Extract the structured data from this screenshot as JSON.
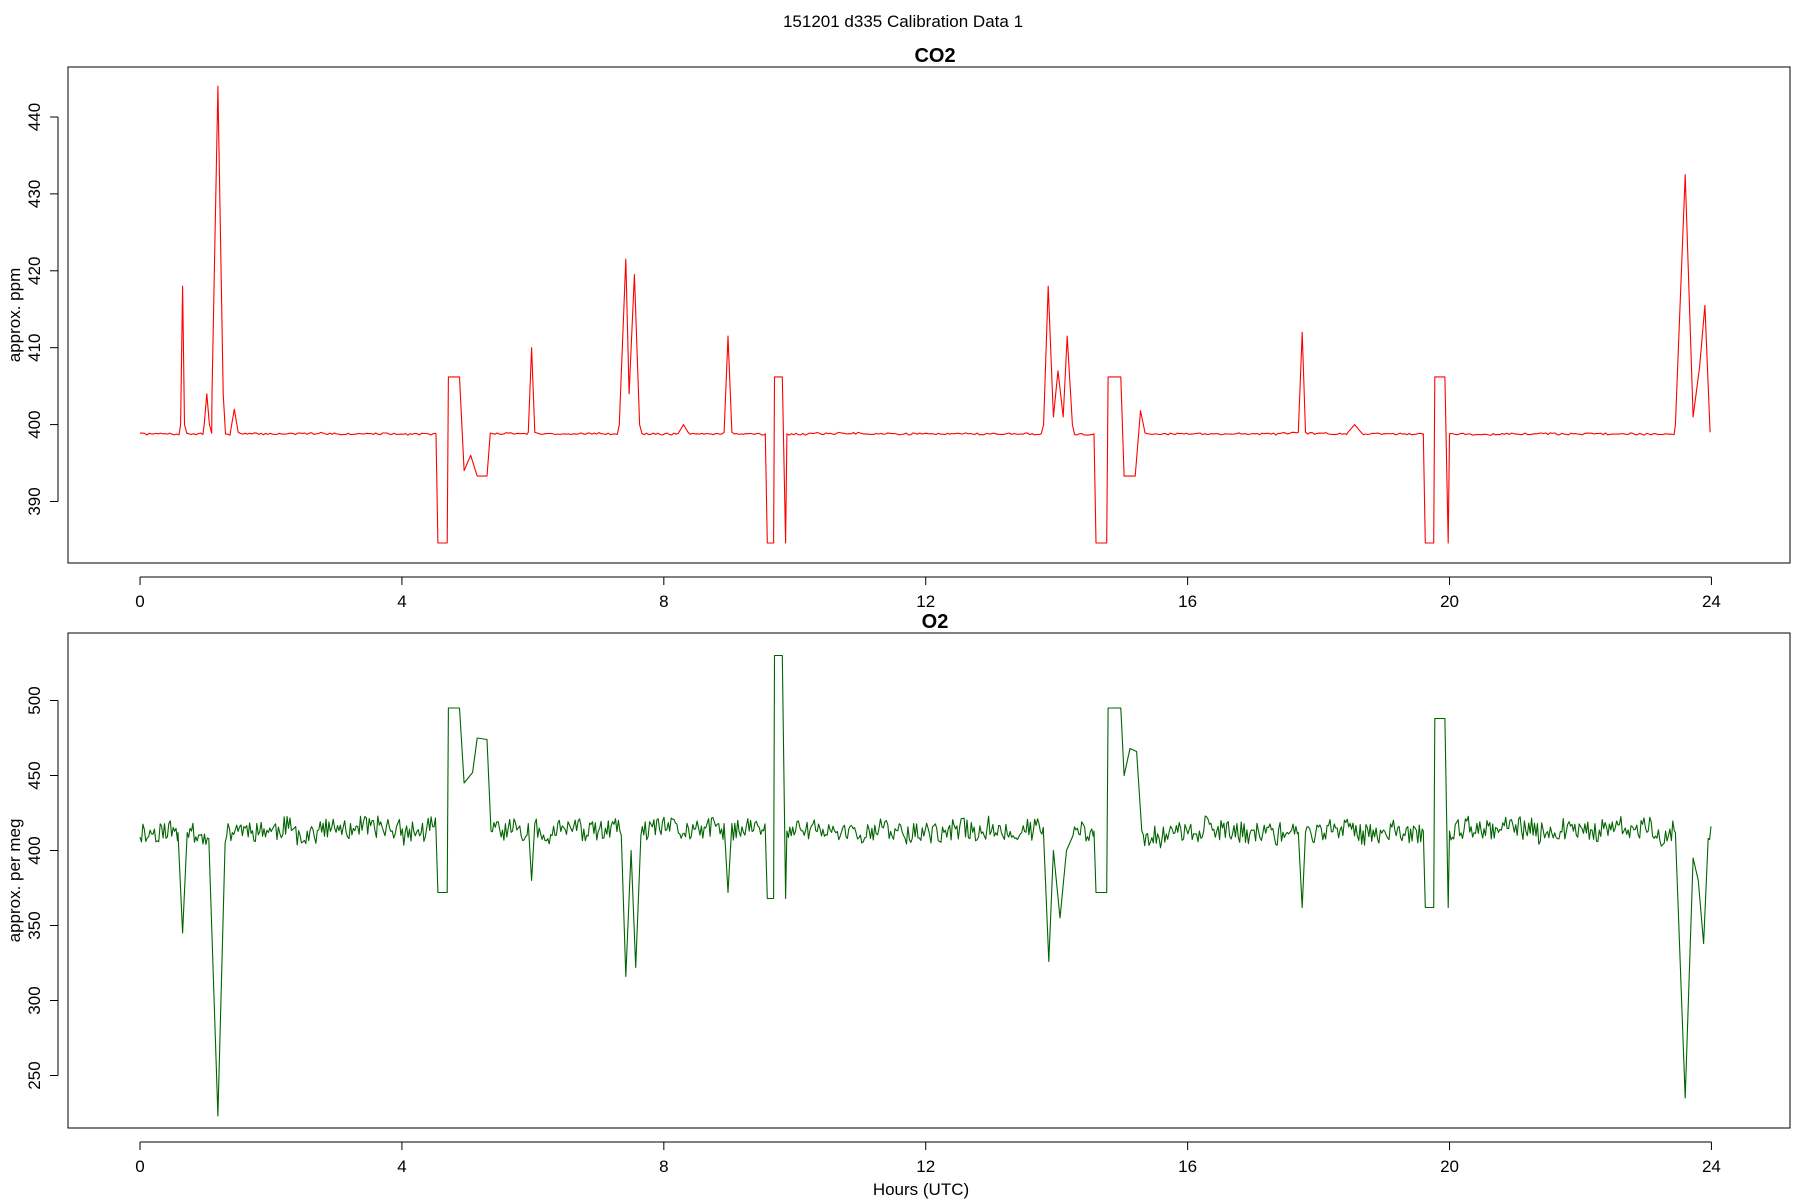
{
  "figure": {
    "title": "151201   d335   Calibration Data 1"
  },
  "chart_data": [
    {
      "type": "line",
      "title": "CO2",
      "xlabel": "",
      "ylabel": "approx. ppm",
      "xlim": [
        -1.1,
        25.2
      ],
      "ylim": [
        382,
        446.5
      ],
      "xticks": [
        0,
        4,
        8,
        12,
        16,
        20,
        24
      ],
      "yticks": [
        390,
        400,
        410,
        420,
        430,
        440
      ],
      "color": "#ff0000",
      "baseline": 398.8,
      "events": [
        {
          "t": [
            0.62,
            0.65,
            0.68
          ],
          "v": [
            400,
            418,
            400
          ]
        },
        {
          "t": [
            0.98,
            1.02,
            1.06
          ],
          "v": [
            400,
            404,
            400
          ]
        },
        {
          "t": [
            1.1,
            1.19,
            1.27
          ],
          "v": [
            404,
            444,
            404
          ]
        },
        {
          "t": [
            1.38,
            1.44,
            1.5
          ],
          "v": [
            399,
            402,
            399
          ]
        },
        {
          "t": [
            5.93,
            5.98,
            6.03
          ],
          "v": [
            399,
            410,
            399
          ]
        },
        {
          "t": [
            7.32,
            7.42,
            7.47,
            7.55,
            7.63
          ],
          "v": [
            400,
            421.5,
            404,
            419.5,
            400
          ]
        },
        {
          "t": [
            8.23,
            8.3,
            8.37
          ],
          "v": [
            399,
            400,
            399
          ]
        },
        {
          "t": [
            8.92,
            8.98,
            9.04
          ],
          "v": [
            399,
            411.5,
            399
          ]
        },
        {
          "t": [
            13.8,
            13.87,
            13.95,
            14.02,
            14.1,
            14.16,
            14.24
          ],
          "v": [
            400,
            418,
            401,
            407,
            401,
            411.5,
            400
          ]
        },
        {
          "t": [
            17.69,
            17.75,
            17.8
          ],
          "v": [
            399,
            412,
            399
          ]
        },
        {
          "t": [
            18.45,
            18.55,
            18.65
          ],
          "v": [
            399,
            400,
            399
          ]
        },
        {
          "t": [
            23.45,
            23.6,
            23.72,
            23.82,
            23.9,
            23.98
          ],
          "v": [
            400,
            432.5,
            401,
            407.5,
            415.5,
            399
          ]
        }
      ],
      "calibrations": [
        {
          "start": 4.52,
          "end": 4.9,
          "low": 384.6,
          "high": 406.2,
          "tail": [
            [
              4.95,
              394
            ],
            [
              5.05,
              396
            ],
            [
              5.15,
              393.3
            ],
            [
              5.3,
              393.3
            ],
            [
              5.35,
              398.9
            ]
          ]
        },
        {
          "start": 9.55,
          "end": 9.83,
          "low": 384.6,
          "high": 406.2
        },
        {
          "start": 14.57,
          "end": 15.0,
          "low": 384.6,
          "high": 406.2,
          "tail": [
            [
              15.03,
              393.3
            ],
            [
              15.2,
              393.3
            ],
            [
              15.28,
              401.8
            ],
            [
              15.35,
              398.9
            ]
          ]
        },
        {
          "start": 19.6,
          "end": 19.95,
          "low": 384.6,
          "high": 406.2
        }
      ]
    },
    {
      "type": "line",
      "title": "O2",
      "xlabel": "Hours (UTC)",
      "ylabel": "approx. per meg",
      "xlim": [
        -1.1,
        25.2
      ],
      "ylim": [
        215,
        545
      ],
      "xticks": [
        0,
        4,
        8,
        12,
        16,
        20,
        24
      ],
      "yticks": [
        250,
        300,
        350,
        400,
        450,
        500
      ],
      "color": "#006400",
      "baseline": 413,
      "events": [
        {
          "t": [
            0.58,
            0.65,
            0.72
          ],
          "v": [
            412,
            345,
            412
          ]
        },
        {
          "t": [
            1.05,
            1.19,
            1.3
          ],
          "v": [
            408,
            223,
            405
          ]
        },
        {
          "t": [
            5.93,
            5.98,
            6.03
          ],
          "v": [
            418,
            380,
            418
          ]
        },
        {
          "t": [
            7.35,
            7.42,
            7.5,
            7.57,
            7.65
          ],
          "v": [
            410,
            316,
            400,
            322,
            410
          ]
        },
        {
          "t": [
            8.92,
            8.98,
            9.04
          ],
          "v": [
            418,
            372,
            418
          ]
        },
        {
          "t": [
            13.8,
            13.88,
            13.95,
            14.05,
            14.15,
            14.25
          ],
          "v": [
            410,
            326,
            400,
            355,
            400,
            410
          ]
        },
        {
          "t": [
            17.69,
            17.75,
            17.8
          ],
          "v": [
            412,
            362,
            412
          ]
        },
        {
          "t": [
            23.45,
            23.6,
            23.72,
            23.8,
            23.88,
            23.95
          ],
          "v": [
            412,
            235,
            395,
            380,
            338,
            408
          ]
        }
      ],
      "calibrations": [
        {
          "start": 4.52,
          "end": 4.9,
          "low": 372,
          "high": 495,
          "tail": [
            [
              4.95,
              445
            ],
            [
              5.08,
              452
            ],
            [
              5.15,
              475
            ],
            [
              5.3,
              474
            ],
            [
              5.36,
              413
            ]
          ]
        },
        {
          "start": 9.55,
          "end": 9.83,
          "low": 368,
          "high": 530
        },
        {
          "start": 14.57,
          "end": 15.0,
          "low": 372,
          "high": 495,
          "tail": [
            [
              15.03,
              450
            ],
            [
              15.12,
              468
            ],
            [
              15.22,
              466
            ],
            [
              15.3,
              413
            ]
          ]
        },
        {
          "start": 19.6,
          "end": 19.95,
          "low": 362,
          "high": 488
        }
      ]
    }
  ]
}
